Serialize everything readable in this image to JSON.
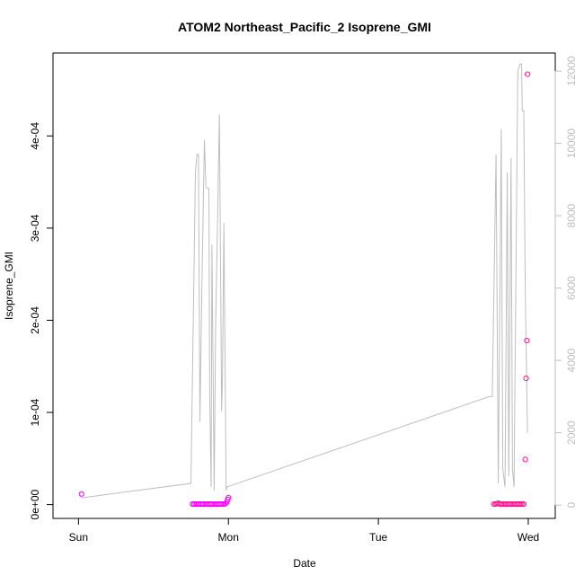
{
  "chart_data": {
    "type": "scatter",
    "title": "ATOM2 Northeast_Pacific_2 Isoprene_GMI",
    "xlabel": "Date",
    "ylabel": "Isoprene_GMI",
    "x_ticks": [
      "Sun",
      "Mon",
      "Tue",
      "Wed"
    ],
    "x_tick_days": [
      0,
      1,
      2,
      3
    ],
    "xlim_days": [
      -0.17,
      3.18
    ],
    "ylim": [
      -1.5e-05,
      0.00049
    ],
    "y_ticks": [
      "0e+00",
      "1e-04",
      "2e-04",
      "3e-04",
      "4e-04"
    ],
    "y_tick_values": [
      0,
      0.0001,
      0.0002,
      0.0003,
      0.0004
    ],
    "y2lim": [
      -370,
      12500
    ],
    "y2_ticks": [
      "0",
      "2000",
      "4000",
      "6000",
      "8000",
      "10000",
      "12000"
    ],
    "y2_tick_values": [
      0,
      2000,
      4000,
      6000,
      8000,
      10000,
      12000
    ],
    "colors": {
      "points_low": "#ff00ff",
      "points_high": "#ff1493",
      "altitude_line": "#bebebe",
      "axis": "#000000",
      "right_axis": "#bebebe"
    },
    "series": [
      {
        "name": "Isoprene_GMI",
        "style": "points",
        "points": [
          [
            0.02,
            1.15e-05
          ],
          [
            0.76,
            5e-07
          ],
          [
            0.77,
            5e-07
          ],
          [
            0.78,
            5e-07
          ],
          [
            0.79,
            5e-07
          ],
          [
            0.8,
            5e-07
          ],
          [
            0.81,
            5e-07
          ],
          [
            0.82,
            5e-07
          ],
          [
            0.83,
            5e-07
          ],
          [
            0.84,
            5e-07
          ],
          [
            0.85,
            5e-07
          ],
          [
            0.86,
            5e-07
          ],
          [
            0.87,
            5e-07
          ],
          [
            0.88,
            5e-07
          ],
          [
            0.89,
            5e-07
          ],
          [
            0.9,
            5e-07
          ],
          [
            0.91,
            5e-07
          ],
          [
            0.92,
            5e-07
          ],
          [
            0.93,
            5e-07
          ],
          [
            0.94,
            5e-07
          ],
          [
            0.95,
            5e-07
          ],
          [
            0.96,
            5e-07
          ],
          [
            0.97,
            5e-07
          ],
          [
            0.98,
            1e-06
          ],
          [
            0.99,
            3e-06
          ],
          [
            0.995,
            5.5e-06
          ],
          [
            1.0,
            7.5e-06
          ],
          [
            2.77,
            5e-07
          ],
          [
            2.78,
            5e-07
          ],
          [
            2.79,
            1e-06
          ],
          [
            2.8,
            1.5e-06
          ],
          [
            2.81,
            5e-07
          ],
          [
            2.82,
            5e-07
          ],
          [
            2.83,
            5e-07
          ],
          [
            2.84,
            5e-07
          ],
          [
            2.85,
            5e-07
          ],
          [
            2.86,
            5e-07
          ],
          [
            2.87,
            5e-07
          ],
          [
            2.88,
            5e-07
          ],
          [
            2.89,
            5e-07
          ],
          [
            2.9,
            5e-07
          ],
          [
            2.91,
            5e-07
          ],
          [
            2.92,
            5e-07
          ],
          [
            2.93,
            5e-07
          ],
          [
            2.94,
            5e-07
          ],
          [
            2.95,
            5e-07
          ],
          [
            2.96,
            5e-07
          ],
          [
            2.97,
            5e-07
          ],
          [
            2.98,
            4.9e-05
          ],
          [
            2.985,
            0.000137
          ],
          [
            2.99,
            0.000178
          ],
          [
            2.995,
            0.000467
          ]
        ]
      },
      {
        "name": "altitude",
        "style": "line",
        "axis": "right",
        "points": [
          [
            0.02,
            200
          ],
          [
            0.75,
            600
          ],
          [
            0.78,
            9200
          ],
          [
            0.79,
            9700
          ],
          [
            0.8,
            9700
          ],
          [
            0.81,
            2300
          ],
          [
            0.825,
            6500
          ],
          [
            0.84,
            10100
          ],
          [
            0.85,
            8800
          ],
          [
            0.86,
            8750
          ],
          [
            0.87,
            8750
          ],
          [
            0.875,
            3000
          ],
          [
            0.885,
            500
          ],
          [
            0.89,
            7200
          ],
          [
            0.905,
            400
          ],
          [
            0.915,
            5000
          ],
          [
            0.93,
            8500
          ],
          [
            0.94,
            10800
          ],
          [
            0.955,
            2600
          ],
          [
            0.96,
            3500
          ],
          [
            0.97,
            7800
          ],
          [
            0.985,
            400
          ],
          [
            0.99,
            500
          ],
          [
            2.74,
            3000
          ],
          [
            2.76,
            3000
          ],
          [
            2.785,
            9700
          ],
          [
            2.8,
            600
          ],
          [
            2.82,
            10400
          ],
          [
            2.83,
            1000
          ],
          [
            2.845,
            500
          ],
          [
            2.86,
            9200
          ],
          [
            2.87,
            800
          ],
          [
            2.885,
            9600
          ],
          [
            2.895,
            1000
          ],
          [
            2.905,
            500
          ],
          [
            2.93,
            12000
          ],
          [
            2.945,
            12200
          ],
          [
            2.955,
            12200
          ],
          [
            2.96,
            10900
          ],
          [
            2.97,
            10900
          ],
          [
            2.98,
            6000
          ],
          [
            2.995,
            2000
          ]
        ]
      }
    ]
  }
}
